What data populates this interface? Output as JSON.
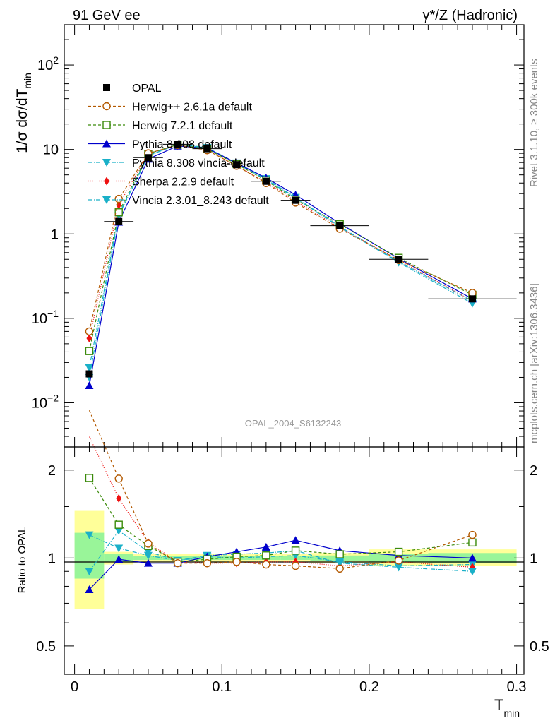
{
  "header": {
    "left": "91 GeV ee",
    "right": "γ*/Z (Hadronic)"
  },
  "side": {
    "rivet": "Rivet 3.1.10, ≥ 300k events",
    "mcplots": "mcplots.cern.ch [arXiv:1306.3436]"
  },
  "watermark": "OPAL_2004_S6132243",
  "chart_data": [
    {
      "type": "line",
      "panel": "main",
      "ylabel": "1/σ dσ/dT_min",
      "yscale": "log",
      "ylim": [
        0.003,
        300
      ],
      "xlim": [
        -0.007,
        0.305
      ],
      "yticks": [
        {
          "v": 0.01,
          "b": "10",
          "e": "−2"
        },
        {
          "v": 0.1,
          "b": "10",
          "e": "−1"
        },
        {
          "v": 1,
          "b": "1",
          "e": ""
        },
        {
          "v": 10,
          "b": "10",
          "e": ""
        },
        {
          "v": 100,
          "b": "10",
          "e": "2"
        }
      ],
      "x": [
        0.01,
        0.03,
        0.05,
        0.07,
        0.09,
        0.11,
        0.13,
        0.15,
        0.18,
        0.22,
        0.27
      ],
      "xbins": [
        [
          0.0,
          0.02
        ],
        [
          0.02,
          0.04
        ],
        [
          0.04,
          0.06
        ],
        [
          0.06,
          0.08
        ],
        [
          0.08,
          0.1
        ],
        [
          0.1,
          0.12
        ],
        [
          0.12,
          0.14
        ],
        [
          0.14,
          0.16
        ],
        [
          0.16,
          0.2
        ],
        [
          0.2,
          0.24
        ],
        [
          0.24,
          0.3
        ]
      ],
      "legend_position": "top-left",
      "series": [
        {
          "name": "OPAL",
          "color": "#000000",
          "marker": "square-filled",
          "dash": "none",
          "values": [
            0.022,
            1.4,
            8.0,
            11.5,
            10.2,
            6.6,
            4.2,
            2.5,
            1.25,
            0.5,
            0.17
          ]
        },
        {
          "name": "Herwig++ 2.6.1a default",
          "color": "#b35900",
          "marker": "circle-open",
          "dash": "4,3",
          "values": [
            0.07,
            2.6,
            9.0,
            11.3,
            9.8,
            6.4,
            4.0,
            2.35,
            1.15,
            0.49,
            0.2
          ]
        },
        {
          "name": "Herwig 7.2.1 default",
          "color": "#3a8a0a",
          "marker": "square-open",
          "dash": "4,3",
          "values": [
            0.041,
            1.8,
            8.9,
            11.4,
            10.1,
            6.7,
            4.3,
            2.55,
            1.3,
            0.52,
            0.19
          ]
        },
        {
          "name": "Pythia 8.308 default",
          "color": "#0000cc",
          "marker": "triangle-up",
          "dash": "none",
          "values": [
            0.016,
            1.38,
            7.7,
            11.0,
            10.3,
            6.9,
            4.6,
            2.9,
            1.33,
            0.51,
            0.17
          ]
        },
        {
          "name": "Pythia 8.308 vincia-default",
          "color": "#1ab0c8",
          "marker": "triangle-down",
          "dash": "6,2,1,2",
          "values": [
            0.02,
            1.65,
            8.4,
            11.5,
            10.4,
            6.8,
            4.4,
            2.65,
            1.2,
            0.46,
            0.15
          ]
        },
        {
          "name": "Sherpa 2.2.9 default",
          "color": "#ee1111",
          "marker": "diamond",
          "dash": "1,2",
          "values": [
            0.058,
            2.2,
            9.0,
            11.1,
            9.8,
            6.4,
            4.1,
            2.45,
            1.18,
            0.49,
            0.16
          ]
        },
        {
          "name": "Vincia 2.3.01_8.243 default",
          "color": "#1ab0c8",
          "marker": "triangle-down",
          "dash": "6,2,1,2",
          "values": [
            0.026,
            1.7,
            8.5,
            11.6,
            10.5,
            6.9,
            4.5,
            2.7,
            1.22,
            0.47,
            0.16
          ]
        }
      ]
    },
    {
      "type": "line",
      "panel": "ratio",
      "xlabel": "T_min",
      "ylabel": "Ratio to OPAL",
      "yscale": "log",
      "ylim": [
        0.4,
        2.4
      ],
      "xlim": [
        -0.007,
        0.305
      ],
      "yticks": [
        {
          "v": 0.5,
          "label": "0.5"
        },
        {
          "v": 1,
          "label": "1"
        },
        {
          "v": 2,
          "label": "2"
        }
      ],
      "xticks": [
        {
          "v": 0,
          "label": "0"
        },
        {
          "v": 0.1,
          "label": "0.1"
        },
        {
          "v": 0.2,
          "label": "0.2"
        },
        {
          "v": 0.3,
          "label": "0.3"
        }
      ],
      "uncertainty_bands": [
        {
          "xbin": [
            0.0,
            0.02
          ],
          "inner": [
            0.85,
            1.22
          ],
          "outer": [
            0.67,
            1.45
          ]
        },
        {
          "xbin": [
            0.02,
            0.04
          ],
          "inner": [
            0.97,
            1.03
          ],
          "outer": [
            0.95,
            1.05
          ]
        },
        {
          "xbin": [
            0.04,
            0.06
          ],
          "inner": [
            0.985,
            1.015
          ],
          "outer": [
            0.97,
            1.03
          ]
        },
        {
          "xbin": [
            0.06,
            0.08
          ],
          "inner": [
            0.985,
            1.015
          ],
          "outer": [
            0.97,
            1.03
          ]
        },
        {
          "xbin": [
            0.08,
            0.1
          ],
          "inner": [
            0.985,
            1.015
          ],
          "outer": [
            0.97,
            1.03
          ]
        },
        {
          "xbin": [
            0.1,
            0.12
          ],
          "inner": [
            0.985,
            1.015
          ],
          "outer": [
            0.97,
            1.03
          ]
        },
        {
          "xbin": [
            0.12,
            0.14
          ],
          "inner": [
            0.985,
            1.015
          ],
          "outer": [
            0.97,
            1.03
          ]
        },
        {
          "xbin": [
            0.14,
            0.16
          ],
          "inner": [
            0.985,
            1.015
          ],
          "outer": [
            0.97,
            1.03
          ]
        },
        {
          "xbin": [
            0.16,
            0.2
          ],
          "inner": [
            0.98,
            1.02
          ],
          "outer": [
            0.96,
            1.04
          ]
        },
        {
          "xbin": [
            0.2,
            0.24
          ],
          "inner": [
            0.97,
            1.03
          ],
          "outer": [
            0.94,
            1.07
          ]
        },
        {
          "xbin": [
            0.24,
            0.3
          ],
          "inner": [
            0.96,
            1.04
          ],
          "outer": [
            0.94,
            1.07
          ]
        }
      ],
      "series": [
        {
          "name": "Herwig++ 2.6.1a default",
          "values": [
            3.2,
            1.87,
            1.12,
            0.96,
            0.96,
            0.97,
            0.95,
            0.94,
            0.92,
            0.98,
            1.2
          ]
        },
        {
          "name": "Herwig 7.2.1 default",
          "values": [
            1.88,
            1.3,
            1.1,
            0.97,
            0.99,
            1.01,
            1.02,
            1.06,
            1.03,
            1.05,
            1.13
          ]
        },
        {
          "name": "Pythia 8.308 default",
          "values": [
            0.78,
            0.99,
            0.96,
            0.96,
            1.01,
            1.05,
            1.09,
            1.15,
            1.06,
            1.02,
            1.0
          ]
        },
        {
          "name": "Pythia 8.308 vincia-default",
          "values": [
            0.9,
            1.24,
            1.05,
            0.98,
            1.02,
            1.03,
            1.04,
            1.06,
            0.96,
            0.93,
            0.9
          ]
        },
        {
          "name": "Sherpa 2.2.9 default",
          "values": [
            2.6,
            1.6,
            1.13,
            0.97,
            0.96,
            0.96,
            0.97,
            0.97,
            0.94,
            0.97,
            0.93
          ]
        },
        {
          "name": "Vincia 2.3.01_8.243 default",
          "values": [
            1.2,
            1.08,
            1.02,
            0.98,
            1.01,
            1.0,
            1.01,
            1.02,
            0.97,
            0.94,
            0.95
          ]
        }
      ]
    }
  ]
}
